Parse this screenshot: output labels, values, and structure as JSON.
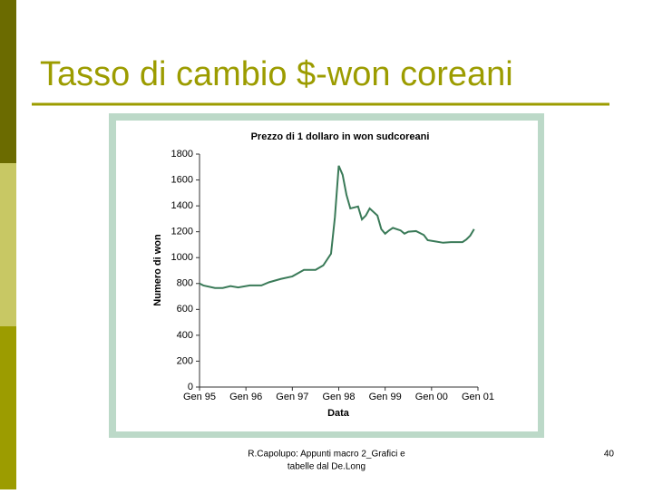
{
  "slide": {
    "title": "Tasso di cambio $-won coreani",
    "footer": [
      "R.Capolupo: Appunti macro 2_Grafici e",
      "tabelle dal De.Long"
    ],
    "page_number": "40"
  },
  "chart_data": {
    "type": "line",
    "title": "Prezzo di 1 dollaro in won sudcoreani",
    "x_label": "Data",
    "y_label": "Numero di won",
    "x": [
      0,
      1,
      4,
      6,
      8,
      10,
      13,
      16,
      18,
      21,
      24,
      27,
      30,
      32,
      34,
      35,
      36,
      37,
      38,
      39,
      41,
      42,
      43,
      44,
      46,
      47,
      48,
      49,
      50,
      52,
      53,
      54,
      56,
      58,
      59,
      61,
      63,
      65,
      67,
      68,
      69,
      70,
      71
    ],
    "series": [
      {
        "name": "Prezzo",
        "color": "#3a7a58",
        "values": [
          800,
          785,
          765,
          765,
          780,
          770,
          785,
          785,
          810,
          835,
          855,
          905,
          905,
          940,
          1030,
          1310,
          1710,
          1640,
          1485,
          1380,
          1395,
          1295,
          1325,
          1380,
          1325,
          1220,
          1185,
          1210,
          1230,
          1210,
          1185,
          1200,
          1205,
          1175,
          1135,
          1125,
          1115,
          1120,
          1120,
          1120,
          1140,
          1170,
          1220
        ]
      }
    ],
    "xlim": [
      0,
      72
    ],
    "xticks": [
      {
        "value": 0,
        "label": "Gen 95"
      },
      {
        "value": 12,
        "label": "Gen 96"
      },
      {
        "value": 24,
        "label": "Gen 97"
      },
      {
        "value": 36,
        "label": "Gen 98"
      },
      {
        "value": 48,
        "label": "Gen 99"
      },
      {
        "value": 60,
        "label": "Gen 00"
      },
      {
        "value": 72,
        "label": "Gen 01"
      }
    ],
    "ylim": [
      0,
      1800
    ],
    "yticks": [
      0,
      200,
      400,
      600,
      800,
      1000,
      1200,
      1400,
      1600,
      1800
    ],
    "grid": false
  }
}
